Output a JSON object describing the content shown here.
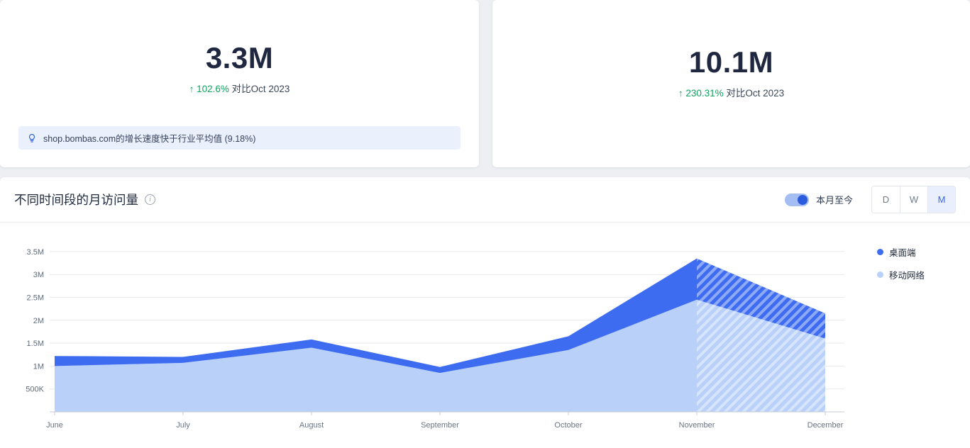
{
  "icons": {
    "arrow_up": "↑",
    "info": "i"
  },
  "colors": {
    "desktop": "#3d6cf0",
    "mobile": "#b9d0f9",
    "positive": "#0fa45f",
    "insight_bg": "#eaf1fd",
    "toggle": "#2a5cdb"
  },
  "cards": [
    {
      "value": "3.3M",
      "change_pct": "102.6%",
      "vs": "对比Oct 2023",
      "insight": "shop.bombas.com的增长速度快于行业平均值 (9.18%)"
    },
    {
      "value": "10.1M",
      "change_pct": "230.31%",
      "vs": "对比Oct 2023"
    }
  ],
  "chart_section": {
    "title": "不同时间段的月访问量",
    "toggle_label": "本月至今",
    "granularity": [
      {
        "label": "D"
      },
      {
        "label": "W"
      },
      {
        "label": "M"
      }
    ],
    "selected": "M"
  },
  "chart_data": {
    "type": "area",
    "stacked": true,
    "title": "不同时间段的月访问量",
    "x": [
      "June",
      "July",
      "August",
      "September",
      "October",
      "November",
      "December"
    ],
    "series": [
      {
        "name": "桌面端",
        "color": "#3d6cf0",
        "values": [
          0.22,
          0.13,
          0.18,
          0.13,
          0.3,
          0.9,
          0.55
        ]
      },
      {
        "name": "移动网络",
        "color": "#b9d0f9",
        "values": [
          1.0,
          1.07,
          1.4,
          0.85,
          1.35,
          2.45,
          1.6
        ]
      }
    ],
    "unit": "M",
    "yticks": [
      "3.5M",
      "3M",
      "2.5M",
      "2M",
      "1.5M",
      "1M",
      "500K"
    ],
    "ytick_values": [
      3.5,
      3,
      2.5,
      2,
      1.5,
      1,
      0.5
    ],
    "ylim": [
      0,
      3.7
    ],
    "grid": "horizontal",
    "hatch_from_index": 5,
    "legend_position": "right"
  }
}
